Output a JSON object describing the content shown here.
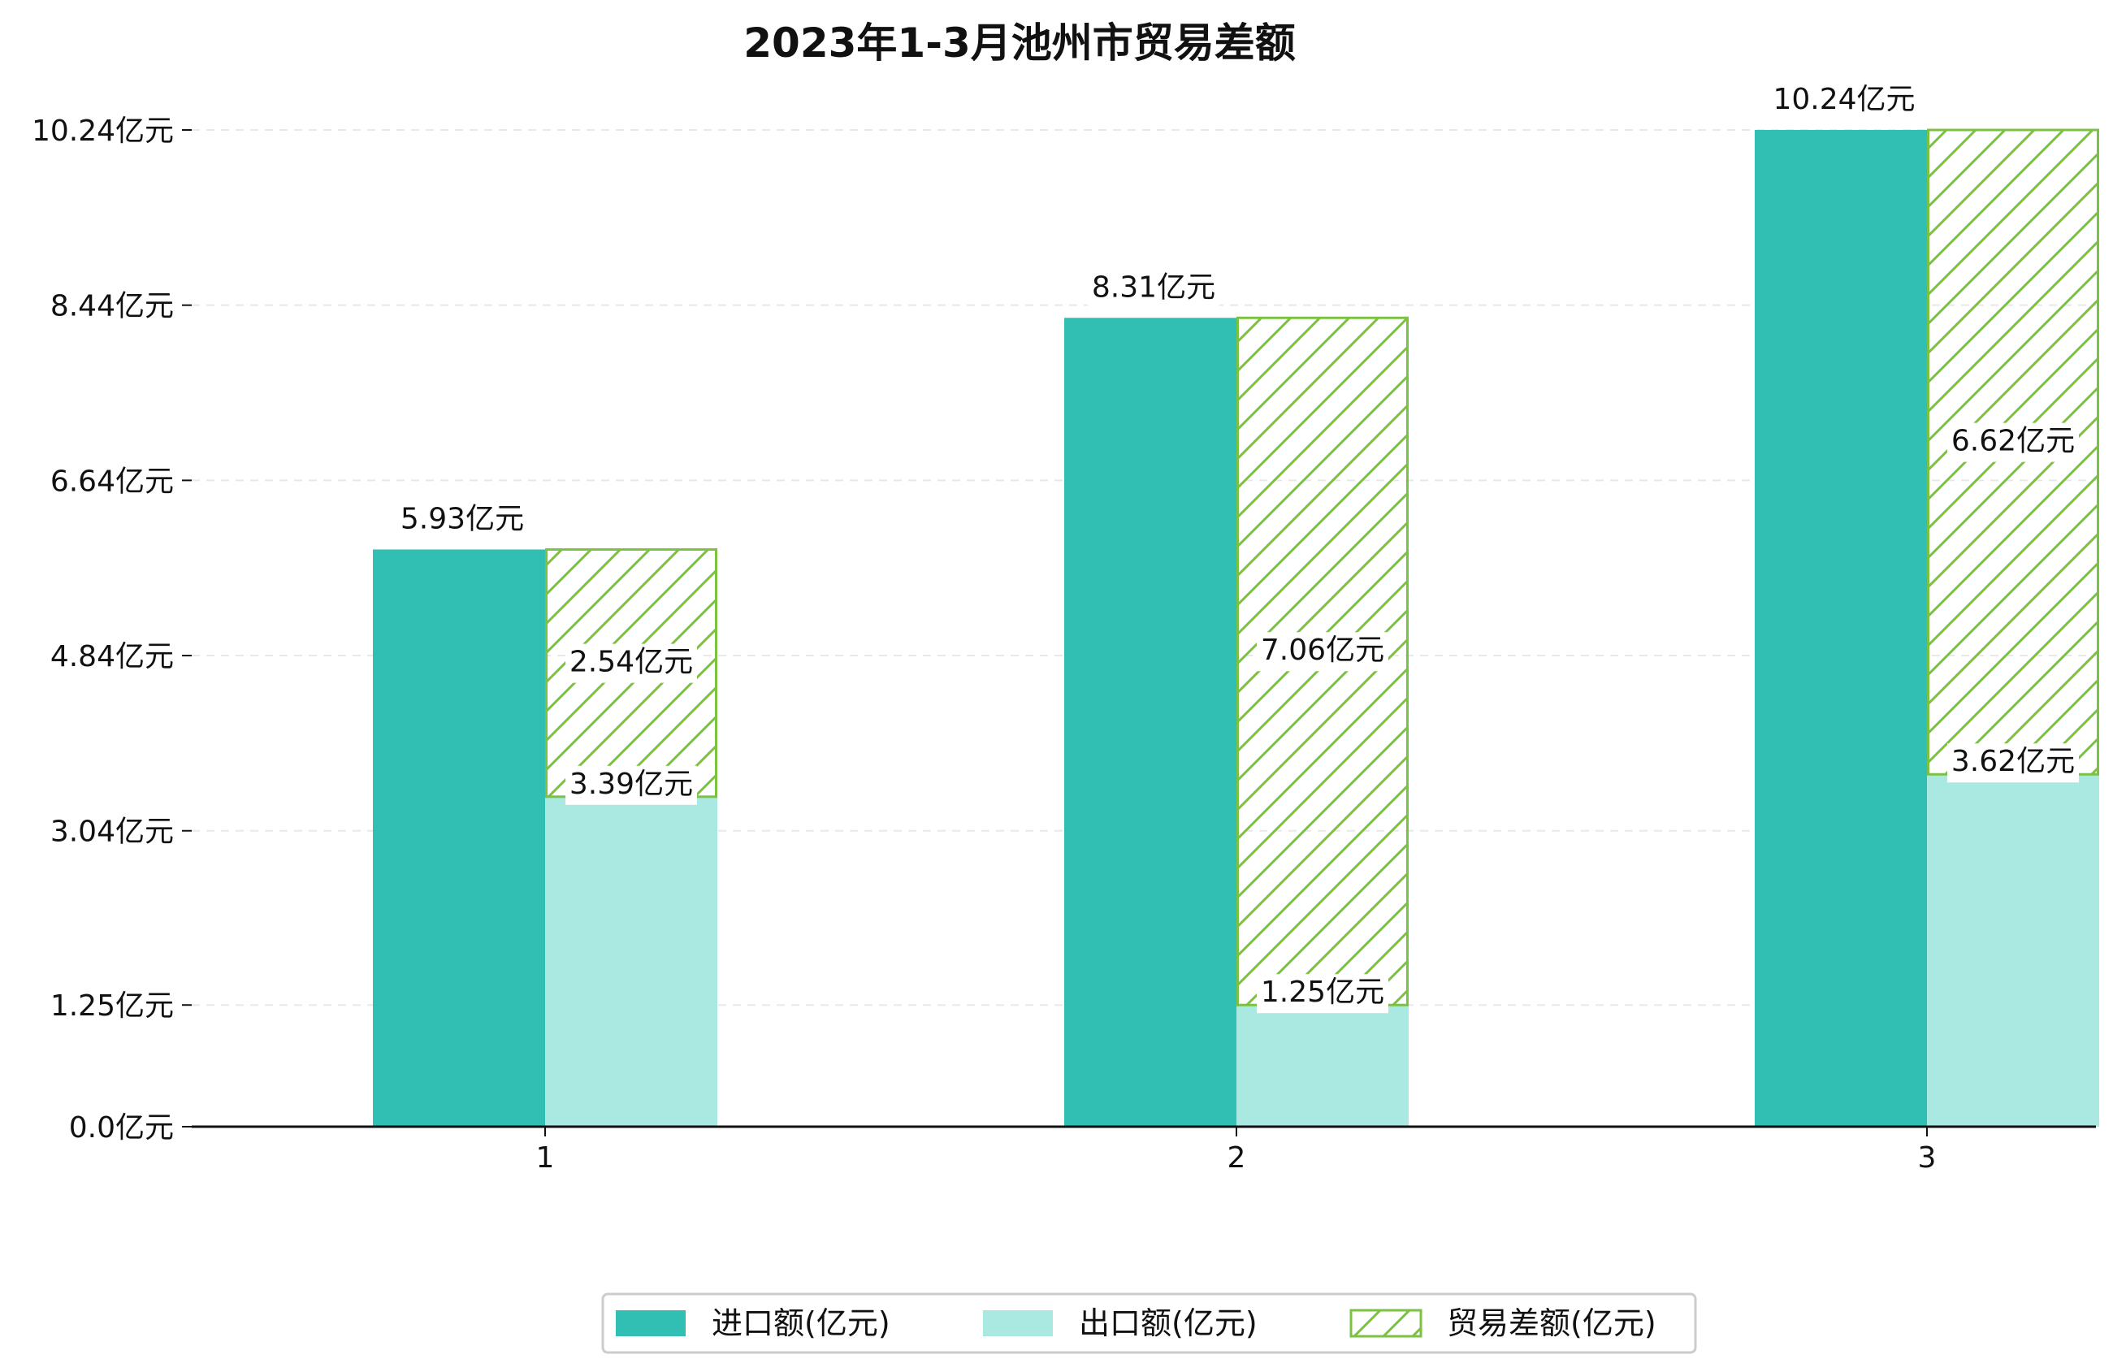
{
  "chart_data": {
    "type": "bar",
    "title": "2023年1-3月池州市贸易差额",
    "categories": [
      "1",
      "2",
      "3"
    ],
    "series": [
      {
        "name": "进口额(亿元)",
        "values": [
          5.93,
          8.31,
          10.24
        ],
        "labels": [
          "5.93亿元",
          "8.31亿元",
          "10.24亿元"
        ],
        "color": "#30bfb2"
      },
      {
        "name": "出口额(亿元)",
        "values": [
          3.39,
          1.25,
          3.62
        ],
        "labels": [
          "3.39亿元",
          "1.25亿元",
          "3.62亿元"
        ],
        "color": "#aae8e2"
      },
      {
        "name": "贸易差额(亿元)",
        "values": [
          2.54,
          7.06,
          6.62
        ],
        "labels": [
          "2.54亿元",
          "7.06亿元",
          "6.62亿元"
        ],
        "color": "#7cc242"
      }
    ],
    "yticks": [
      0.0,
      1.25,
      3.04,
      4.84,
      6.64,
      8.44,
      10.24
    ],
    "ytick_labels": [
      "0.0亿元",
      "1.25亿元",
      "3.04亿元",
      "4.84亿元",
      "6.64亿元",
      "8.44亿元",
      "10.24亿元"
    ],
    "ylim": [
      0,
      10.24
    ],
    "grid": "horizontal-dashed",
    "legend_position": "bottom-center"
  }
}
